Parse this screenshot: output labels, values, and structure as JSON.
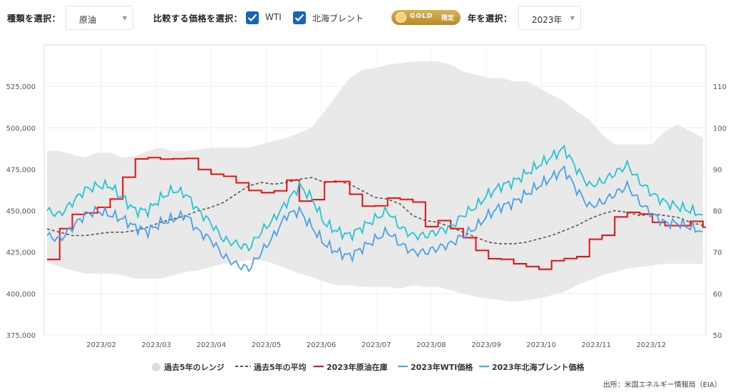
{
  "controls": {
    "type_label": "種類を選択：",
    "type_value": "原油",
    "compare_label": "比較する価格を選択：",
    "wti_label": "WTI",
    "brent_label": "北海ブレント",
    "gold_badge": "GOLD",
    "gold_sub": "限定",
    "year_label": "年を選択：",
    "year_value": "2023年"
  },
  "colors": {
    "range": "#e9e9e9",
    "avg": "#555555",
    "inventory": "#ee1111",
    "wti": "#4aa0ee",
    "brent": "#27c2d6",
    "checkbox": "#1565c0"
  },
  "source": "出所：米国エネルギー情報局（EIA）",
  "chart_data": {
    "type": "line",
    "title": "",
    "x_ticks": [
      "2023/02",
      "2023/03",
      "2023/04",
      "2023/05",
      "2023/06",
      "2023/07",
      "2023/08",
      "2023/09",
      "2023/10",
      "2023/11",
      "2023/12"
    ],
    "y_left": {
      "ticks": [
        "375,000",
        "400,000",
        "425,000",
        "450,000",
        "475,000",
        "500,000",
        "525,000"
      ],
      "range": [
        375000,
        550000
      ]
    },
    "y_right": {
      "ticks": [
        "50",
        "60",
        "70",
        "80",
        "90",
        "100",
        "110"
      ],
      "range": [
        50,
        120
      ]
    },
    "legend": [
      "過去5年のレンジ",
      "過去5年の平均",
      "2023年原油在庫",
      "2023年WTI価格",
      "2023年北海ブレント価格"
    ],
    "weeks": 53,
    "range_upper": [
      486000,
      486000,
      484000,
      482000,
      485000,
      485000,
      482000,
      483000,
      486000,
      488000,
      486000,
      486000,
      487000,
      488000,
      488000,
      488000,
      488000,
      490000,
      492000,
      494000,
      497000,
      500000,
      510000,
      520000,
      530000,
      535000,
      536000,
      538000,
      539000,
      540000,
      540000,
      540000,
      538000,
      534000,
      532000,
      530000,
      530000,
      528000,
      528000,
      524000,
      520000,
      516000,
      510000,
      505000,
      496000,
      490000,
      490000,
      490000,
      490000,
      498000,
      502000,
      498000,
      494000
    ],
    "range_lower": [
      419000,
      416000,
      414000,
      412000,
      412000,
      412000,
      411000,
      409000,
      409000,
      409000,
      411000,
      413000,
      414000,
      416000,
      418000,
      419000,
      420000,
      420000,
      418000,
      415000,
      412000,
      410000,
      407000,
      405000,
      405000,
      404000,
      404000,
      404000,
      403000,
      405000,
      404000,
      404000,
      402000,
      400000,
      398000,
      397000,
      396000,
      395000,
      396000,
      397000,
      399000,
      401000,
      405000,
      408000,
      411000,
      413000,
      415000,
      416000,
      417000,
      418000,
      418000,
      418000,
      418000
    ],
    "avg_5yr": [
      439000,
      437000,
      435000,
      435000,
      436000,
      437000,
      437000,
      438000,
      440000,
      443000,
      445000,
      447000,
      450000,
      452000,
      455000,
      460000,
      465000,
      467000,
      466000,
      467000,
      469000,
      470000,
      467000,
      468000,
      466000,
      462000,
      458000,
      457000,
      454000,
      447000,
      444000,
      443000,
      440000,
      437000,
      434000,
      431000,
      430000,
      430000,
      431000,
      433000,
      435000,
      438000,
      441000,
      445000,
      448000,
      450000,
      449000,
      447000,
      448000,
      447000,
      446000,
      443000,
      441000
    ],
    "inventory_2023": [
      420600,
      439200,
      447800,
      448600,
      452000,
      457000,
      470200,
      481200,
      482000,
      481100,
      481300,
      481500,
      474900,
      472000,
      470700,
      466800,
      462200,
      460900,
      462000,
      468400,
      455800,
      456700,
      467400,
      467600,
      459900,
      452700,
      452900,
      457600,
      456800,
      455200,
      440400,
      444000,
      439200,
      433700,
      426000,
      421000,
      420700,
      418000,
      416300,
      414700,
      419800,
      421100,
      422300,
      432800,
      435200,
      446200,
      449000,
      448000,
      443000,
      441000,
      441000,
      443600,
      440000
    ],
    "wti_2023": [
      74,
      73,
      76,
      79,
      80,
      79,
      78,
      76,
      75,
      77,
      78,
      79,
      75,
      73,
      69,
      67,
      66,
      70,
      74,
      79,
      80,
      76,
      72,
      70,
      69,
      71,
      73,
      75,
      72,
      70,
      70,
      71,
      72,
      74,
      76,
      79,
      81,
      82,
      84,
      86,
      88,
      90,
      85,
      81,
      82,
      84,
      86,
      82,
      79,
      77,
      77,
      76,
      75
    ],
    "brent_2023": [
      80,
      79,
      82,
      85,
      86,
      86,
      83,
      80,
      80,
      83,
      85,
      84,
      80,
      77,
      73,
      72,
      71,
      75,
      78,
      82,
      86,
      83,
      77,
      75,
      74,
      76,
      78,
      80,
      76,
      74,
      74,
      75,
      76,
      79,
      81,
      84,
      86,
      87,
      89,
      91,
      93,
      95,
      90,
      86,
      87,
      89,
      91,
      87,
      84,
      82,
      81,
      80,
      79
    ]
  }
}
